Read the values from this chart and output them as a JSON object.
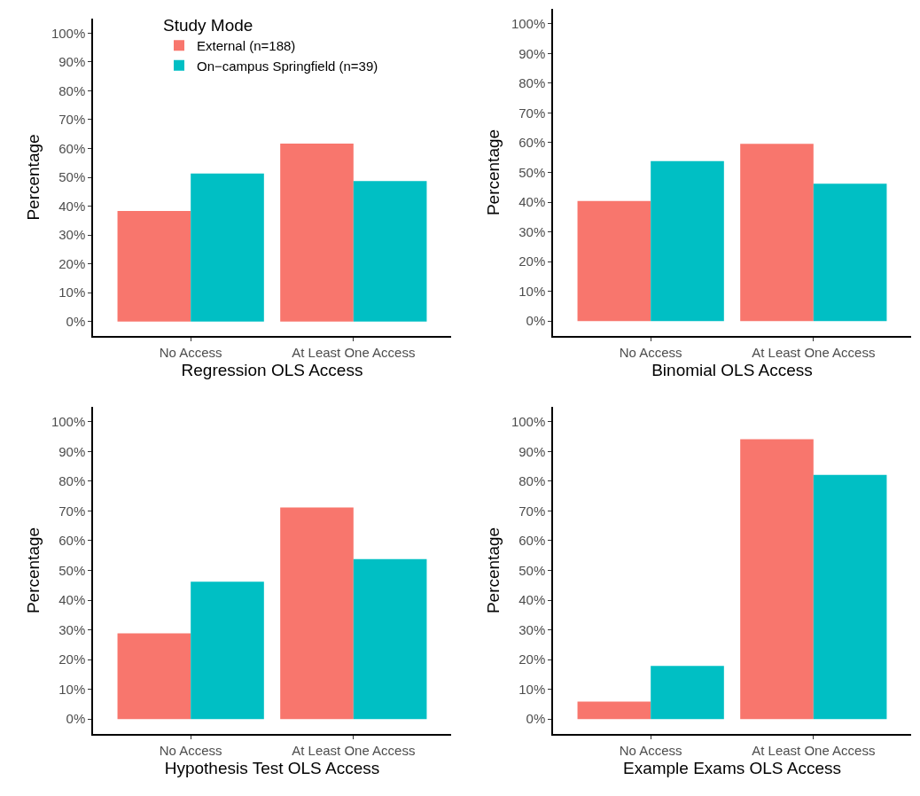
{
  "chart_data": [
    {
      "type": "bar",
      "categories": [
        "No Access",
        "At Least One Access"
      ],
      "xlabel": "Regression OLS Access",
      "ylabel": "Percentage",
      "legend": "top",
      "legend_title": "Study Mode",
      "grid": false,
      "ylim": [
        -5,
        105
      ],
      "yticks": [
        {
          "value": 0,
          "label": "0%"
        },
        {
          "value": 10,
          "label": "10%"
        },
        {
          "value": 20,
          "label": "20%"
        },
        {
          "value": 30,
          "label": "30%"
        },
        {
          "value": 40,
          "label": "40%"
        },
        {
          "value": 50,
          "label": "50%"
        },
        {
          "value": 60,
          "label": "60%"
        },
        {
          "value": 70,
          "label": "70%"
        },
        {
          "value": 80,
          "label": "80%"
        },
        {
          "value": 90,
          "label": "90%"
        },
        {
          "value": 100,
          "label": "100%"
        }
      ],
      "series": [
        {
          "name": "External (n=188)",
          "color": "#f8766d",
          "values": [
            38.3,
            61.7
          ]
        },
        {
          "name": "On−campus Springfield (n=39)",
          "color": "#00bfc4",
          "values": [
            51.3,
            48.7
          ]
        }
      ]
    },
    {
      "type": "bar",
      "categories": [
        "No Access",
        "At Least One Access"
      ],
      "xlabel": "Binomial OLS Access",
      "ylabel": "Percentage",
      "grid": false,
      "ylim": [
        -5,
        105
      ],
      "yticks": [
        {
          "value": 0,
          "label": "0%"
        },
        {
          "value": 10,
          "label": "10%"
        },
        {
          "value": 20,
          "label": "20%"
        },
        {
          "value": 30,
          "label": "30%"
        },
        {
          "value": 40,
          "label": "40%"
        },
        {
          "value": 50,
          "label": "50%"
        },
        {
          "value": 60,
          "label": "60%"
        },
        {
          "value": 70,
          "label": "70%"
        },
        {
          "value": 80,
          "label": "80%"
        },
        {
          "value": 90,
          "label": "90%"
        },
        {
          "value": 100,
          "label": "100%"
        }
      ],
      "series": [
        {
          "color": "#f8766d",
          "values": [
            40.4,
            59.6
          ]
        },
        {
          "color": "#00bfc4",
          "values": [
            53.8,
            46.2
          ]
        }
      ]
    },
    {
      "type": "bar",
      "categories": [
        "No Access",
        "At Least One Access"
      ],
      "xlabel": "Hypothesis Test OLS Access",
      "ylabel": "Percentage",
      "grid": false,
      "ylim": [
        -5,
        105
      ],
      "yticks": [
        {
          "value": 0,
          "label": "0%"
        },
        {
          "value": 10,
          "label": "10%"
        },
        {
          "value": 20,
          "label": "20%"
        },
        {
          "value": 30,
          "label": "30%"
        },
        {
          "value": 40,
          "label": "40%"
        },
        {
          "value": 50,
          "label": "50%"
        },
        {
          "value": 60,
          "label": "60%"
        },
        {
          "value": 70,
          "label": "70%"
        },
        {
          "value": 80,
          "label": "80%"
        },
        {
          "value": 90,
          "label": "90%"
        },
        {
          "value": 100,
          "label": "100%"
        }
      ],
      "series": [
        {
          "color": "#f8766d",
          "values": [
            28.8,
            71.2
          ]
        },
        {
          "color": "#00bfc4",
          "values": [
            46.2,
            53.8
          ]
        }
      ]
    },
    {
      "type": "bar",
      "categories": [
        "No Access",
        "At Least One Access"
      ],
      "xlabel": "Example Exams OLS Access",
      "ylabel": "Percentage",
      "grid": false,
      "ylim": [
        -5,
        105
      ],
      "yticks": [
        {
          "value": 0,
          "label": "0%"
        },
        {
          "value": 10,
          "label": "10%"
        },
        {
          "value": 20,
          "label": "20%"
        },
        {
          "value": 30,
          "label": "30%"
        },
        {
          "value": 40,
          "label": "40%"
        },
        {
          "value": 50,
          "label": "50%"
        },
        {
          "value": 60,
          "label": "60%"
        },
        {
          "value": 70,
          "label": "70%"
        },
        {
          "value": 80,
          "label": "80%"
        },
        {
          "value": 90,
          "label": "90%"
        },
        {
          "value": 100,
          "label": "100%"
        }
      ],
      "series": [
        {
          "color": "#f8766d",
          "values": [
            5.9,
            94.1
          ]
        },
        {
          "color": "#00bfc4",
          "values": [
            17.9,
            82.1
          ]
        }
      ]
    }
  ]
}
